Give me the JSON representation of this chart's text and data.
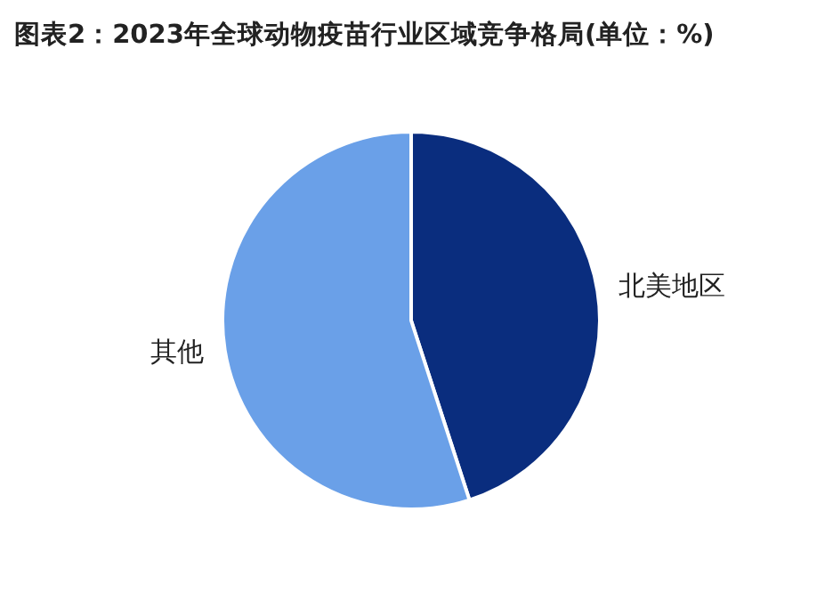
{
  "chart_data": {
    "type": "pie",
    "title": "图表2：2023年全球动物疫苗行业区域竞争格局(单位：%)",
    "categories": [
      "北美地区",
      "其他"
    ],
    "values": [
      45,
      55
    ],
    "colors": [
      "#0a2d7e",
      "#6aa0e8"
    ],
    "legend": false
  }
}
